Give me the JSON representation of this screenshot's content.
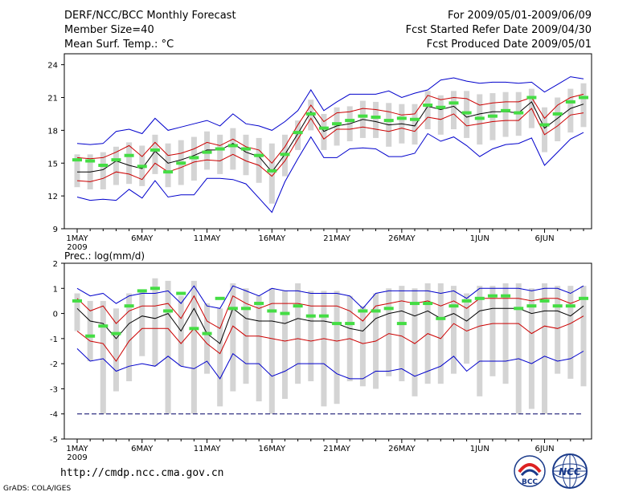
{
  "header": {
    "left": [
      "DERF/NCC/BCC Monthly Forecast",
      "Member Size=40",
      "Mean Surf. Temp.: °C"
    ],
    "right": [
      "For 2009/05/01-2009/06/09",
      "Fcst Started Refer Date 2009/04/30",
      "Fcst Produced Date 2009/05/01"
    ]
  },
  "footer": {
    "url": "http://cmdp.ncc.cma.gov.cn",
    "credit": "GrADS: COLA/IGES",
    "logos": [
      "BCC",
      "NCC"
    ]
  },
  "colors": {
    "envelope": "#0000cc",
    "spread": "#cc0000",
    "median": "#000000",
    "box": "#d4d4d4",
    "green": "#44dd44",
    "ref_line": "#000066"
  },
  "chart_data": [
    {
      "type": "box",
      "title": "Mean Surf. Temp.: °C",
      "ylabel": "°C",
      "ylim": [
        9,
        25
      ],
      "yticks": [
        9,
        12,
        15,
        18,
        21,
        24
      ],
      "x_tick_labels": [
        "1MAY",
        "6MAY",
        "11MAY",
        "16MAY",
        "21MAY",
        "26MAY",
        "1JUN",
        "6JUN"
      ],
      "x_tick_days": [
        0,
        5,
        10,
        15,
        20,
        25,
        31,
        36
      ],
      "year_label": "2009",
      "n_days": 40,
      "series": [
        {
          "name": "max",
          "color": "envelope",
          "values": [
            16.8,
            16.7,
            16.8,
            17.9,
            18.1,
            17.7,
            19.1,
            18.0,
            18.3,
            18.6,
            18.9,
            18.4,
            19.5,
            18.6,
            18.4,
            18.0,
            18.8,
            19.8,
            21.7,
            19.8,
            20.6,
            21.3,
            21.3,
            21.3,
            21.6,
            21.0,
            21.4,
            21.7,
            22.6,
            22.8,
            22.5,
            22.3,
            22.4,
            22.4,
            22.3,
            22.4,
            21.5,
            22.2,
            22.9,
            22.7
          ]
        },
        {
          "name": "upper",
          "color": "spread",
          "values": [
            15.5,
            15.4,
            15.5,
            16.0,
            16.6,
            15.6,
            16.9,
            15.7,
            15.9,
            16.3,
            16.9,
            16.6,
            17.2,
            16.5,
            16.2,
            15.0,
            16.5,
            18.5,
            20.3,
            18.8,
            19.6,
            19.7,
            20.0,
            19.9,
            19.7,
            19.4,
            19.5,
            21.2,
            20.8,
            21.0,
            20.9,
            20.3,
            20.5,
            20.6,
            20.6,
            21.0,
            19.1,
            20.3,
            21.0,
            21.3
          ]
        },
        {
          "name": "median",
          "color": "median",
          "values": [
            14.2,
            14.2,
            14.4,
            15.2,
            14.8,
            14.5,
            16.1,
            15.0,
            15.3,
            15.7,
            16.2,
            16.2,
            16.8,
            16.0,
            15.6,
            14.2,
            15.8,
            17.7,
            19.7,
            17.9,
            18.4,
            18.6,
            19.0,
            18.8,
            18.5,
            18.6,
            18.4,
            20.2,
            19.9,
            20.2,
            19.2,
            19.5,
            19.7,
            19.7,
            19.6,
            20.6,
            18.2,
            19.1,
            20.0,
            20.4
          ]
        },
        {
          "name": "lower",
          "color": "spread",
          "values": [
            13.4,
            13.3,
            13.6,
            14.2,
            14.0,
            13.5,
            15.0,
            14.2,
            14.6,
            15.1,
            15.3,
            15.2,
            15.8,
            15.2,
            14.8,
            13.8,
            15.2,
            17.2,
            19.1,
            17.2,
            18.1,
            18.1,
            18.3,
            18.1,
            17.9,
            18.2,
            17.9,
            19.2,
            19.0,
            19.5,
            18.4,
            18.6,
            18.8,
            18.9,
            18.9,
            20.0,
            17.6,
            18.4,
            19.4,
            19.6
          ]
        },
        {
          "name": "min",
          "color": "envelope",
          "values": [
            11.9,
            11.6,
            11.7,
            11.6,
            12.6,
            11.8,
            13.4,
            11.9,
            12.1,
            12.1,
            13.6,
            13.6,
            13.5,
            13.1,
            11.8,
            10.5,
            13.3,
            15.4,
            17.4,
            15.5,
            15.5,
            16.3,
            16.4,
            16.3,
            15.6,
            15.6,
            15.9,
            17.7,
            17.0,
            17.4,
            16.6,
            15.6,
            16.3,
            16.7,
            16.8,
            17.3,
            14.8,
            16.0,
            17.2,
            17.8
          ]
        },
        {
          "name": "box_top",
          "color": "box",
          "values": [
            15.8,
            15.8,
            16.0,
            16.5,
            16.9,
            16.6,
            17.6,
            16.8,
            17.1,
            17.4,
            17.9,
            17.6,
            18.2,
            17.6,
            17.3,
            16.8,
            17.6,
            18.9,
            20.8,
            19.5,
            20.1,
            20.2,
            20.7,
            20.6,
            20.5,
            20.4,
            20.4,
            21.6,
            21.2,
            21.6,
            21.6,
            21.3,
            21.4,
            21.5,
            21.5,
            21.8,
            20.1,
            21.0,
            21.8,
            22.3
          ]
        },
        {
          "name": "box_bottom",
          "color": "box",
          "values": [
            12.8,
            12.6,
            12.6,
            13.0,
            13.1,
            12.9,
            14.0,
            12.8,
            13.0,
            13.4,
            14.4,
            14.0,
            14.4,
            13.9,
            13.2,
            11.3,
            13.8,
            16.2,
            18.0,
            16.2,
            16.6,
            17.0,
            17.3,
            17.3,
            16.5,
            16.8,
            16.7,
            18.1,
            17.6,
            18.1,
            17.3,
            16.7,
            17.1,
            17.4,
            17.5,
            18.2,
            16.0,
            17.0,
            17.8,
            18.3
          ]
        },
        {
          "name": "observed",
          "color": "green",
          "values": [
            15.3,
            15.2,
            14.8,
            15.3,
            15.7,
            14.7,
            16.2,
            14.2,
            15.0,
            15.5,
            16.0,
            16.3,
            16.6,
            16.3,
            15.7,
            14.3,
            15.8,
            17.8,
            19.5,
            18.2,
            18.6,
            18.9,
            19.3,
            19.2,
            18.9,
            19.1,
            19.0,
            20.3,
            20.1,
            20.5,
            19.6,
            19.1,
            19.3,
            19.8,
            19.6,
            21.0,
            18.5,
            19.5,
            20.6,
            21.0
          ]
        }
      ]
    },
    {
      "type": "box",
      "title": "Prec.: log(mm/d)",
      "ylabel": "log(mm/d)",
      "ylim": [
        -5,
        2
      ],
      "yticks": [
        -5,
        -4,
        -3,
        -2,
        -1,
        0,
        1,
        2
      ],
      "x_tick_labels": [
        "1MAY",
        "6MAY",
        "11MAY",
        "16MAY",
        "21MAY",
        "26MAY",
        "1JUN",
        "6JUN"
      ],
      "x_tick_days": [
        0,
        5,
        10,
        15,
        20,
        25,
        31,
        36
      ],
      "year_label": "2009",
      "n_days": 40,
      "reference_line": -4,
      "series": [
        {
          "name": "max",
          "color": "envelope",
          "values": [
            1.0,
            0.7,
            0.8,
            0.4,
            0.7,
            0.8,
            0.8,
            0.9,
            0.4,
            1.1,
            0.3,
            0.2,
            1.1,
            0.9,
            0.7,
            1.0,
            0.9,
            0.9,
            0.8,
            0.8,
            0.8,
            0.7,
            0.2,
            0.8,
            0.9,
            0.9,
            0.9,
            0.9,
            0.8,
            0.9,
            0.6,
            1.0,
            1.0,
            1.0,
            1.0,
            0.9,
            1.0,
            1.0,
            0.8,
            1.1
          ]
        },
        {
          "name": "upper",
          "color": "spread",
          "values": [
            0.6,
            0.1,
            0.3,
            -0.4,
            0.1,
            0.3,
            0.3,
            0.4,
            -0.2,
            0.7,
            -0.3,
            -0.6,
            0.7,
            0.4,
            0.2,
            0.4,
            0.4,
            0.4,
            0.3,
            0.3,
            0.3,
            0.1,
            -0.3,
            0.3,
            0.4,
            0.5,
            0.4,
            0.5,
            0.3,
            0.5,
            0.2,
            0.6,
            0.6,
            0.6,
            0.6,
            0.5,
            0.6,
            0.6,
            0.4,
            0.6
          ]
        },
        {
          "name": "median",
          "color": "median",
          "values": [
            0.2,
            -0.3,
            -0.4,
            -1.0,
            -0.4,
            -0.1,
            -0.2,
            0.0,
            -0.7,
            0.2,
            -0.8,
            -1.2,
            0.2,
            -0.2,
            -0.3,
            -0.3,
            -0.4,
            -0.2,
            -0.3,
            -0.3,
            -0.4,
            -0.6,
            -0.7,
            -0.2,
            0.0,
            0.1,
            -0.1,
            0.1,
            -0.2,
            0.0,
            -0.3,
            0.1,
            0.2,
            0.2,
            0.2,
            0.0,
            0.1,
            0.1,
            -0.1,
            0.3
          ]
        },
        {
          "name": "lower",
          "color": "spread",
          "values": [
            -0.7,
            -1.1,
            -1.2,
            -1.9,
            -1.1,
            -0.6,
            -0.6,
            -0.6,
            -1.2,
            -0.6,
            -1.2,
            -1.6,
            -0.5,
            -0.9,
            -0.9,
            -1.0,
            -1.1,
            -1.0,
            -1.1,
            -1.0,
            -1.1,
            -1.0,
            -1.2,
            -1.1,
            -0.8,
            -0.9,
            -1.2,
            -0.8,
            -1.0,
            -0.4,
            -0.7,
            -0.5,
            -0.4,
            -0.4,
            -0.4,
            -0.8,
            -0.5,
            -0.6,
            -0.4,
            -0.1
          ]
        },
        {
          "name": "min",
          "color": "envelope",
          "values": [
            -1.4,
            -1.9,
            -1.8,
            -2.3,
            -2.1,
            -2.0,
            -2.1,
            -1.7,
            -2.1,
            -2.2,
            -1.9,
            -2.6,
            -1.6,
            -2.0,
            -2.0,
            -2.5,
            -2.3,
            -2.0,
            -2.0,
            -2.0,
            -2.4,
            -2.6,
            -2.6,
            -2.3,
            -2.3,
            -2.2,
            -2.5,
            -2.3,
            -2.1,
            -1.7,
            -2.3,
            -1.9,
            -1.9,
            -1.9,
            -1.8,
            -2.0,
            -1.7,
            -1.9,
            -1.8,
            -1.5
          ]
        },
        {
          "name": "box_top",
          "color": "box",
          "values": [
            0.8,
            0.5,
            0.5,
            0.2,
            0.8,
            0.9,
            1.4,
            1.3,
            0.7,
            1.3,
            0.4,
            0.2,
            1.2,
            1.0,
            0.7,
            1.0,
            0.9,
            1.2,
            0.9,
            0.9,
            0.9,
            0.7,
            0.3,
            0.8,
            1.0,
            1.1,
            1.0,
            1.2,
            1.2,
            1.1,
            0.8,
            1.1,
            1.1,
            1.2,
            1.2,
            1.0,
            1.2,
            1.1,
            1.1,
            1.1
          ]
        },
        {
          "name": "box_bottom",
          "color": "box",
          "values": [
            -0.7,
            -1.9,
            -4.0,
            -3.1,
            -2.7,
            -1.7,
            -2.1,
            -4.0,
            -2.1,
            -4.0,
            -2.4,
            -3.7,
            -3.1,
            -2.8,
            -3.5,
            -4.0,
            -3.4,
            -2.8,
            -2.7,
            -3.7,
            -3.6,
            -2.7,
            -2.9,
            -3.0,
            -2.5,
            -2.7,
            -3.3,
            -2.8,
            -2.8,
            -2.4,
            -2.0,
            -3.3,
            -2.5,
            -2.8,
            -4.0,
            -3.8,
            -4.0,
            -2.4,
            -2.6,
            -2.9
          ]
        },
        {
          "name": "observed",
          "color": "green",
          "values": [
            0.5,
            -0.9,
            -0.5,
            -0.8,
            0.3,
            0.9,
            1.0,
            0.1,
            0.8,
            -0.6,
            -0.8,
            0.6,
            0.2,
            0.2,
            0.4,
            0.1,
            0.0,
            0.3,
            -0.1,
            -0.1,
            -0.4,
            -0.4,
            0.1,
            0.1,
            0.2,
            -0.4,
            0.4,
            0.4,
            -0.2,
            0.3,
            0.5,
            0.6,
            0.7,
            0.7,
            0.2,
            0.3,
            0.5,
            0.3,
            0.3,
            0.6
          ]
        }
      ]
    }
  ]
}
